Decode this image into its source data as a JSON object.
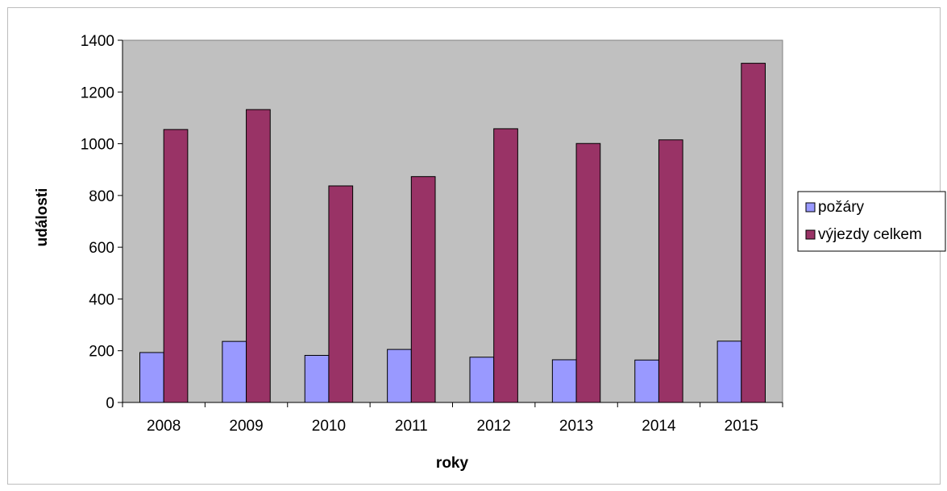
{
  "chart_data": {
    "type": "bar",
    "title": "",
    "xlabel": "roky",
    "ylabel": "události",
    "categories": [
      "2008",
      "2009",
      "2010",
      "2011",
      "2012",
      "2013",
      "2014",
      "2015"
    ],
    "series": [
      {
        "name": "požáry",
        "color": "#9999ff",
        "values": [
          193,
          236,
          182,
          205,
          175,
          165,
          164,
          237
        ]
      },
      {
        "name": "výjezdy celkem",
        "color": "#993366",
        "values": [
          1055,
          1132,
          837,
          873,
          1058,
          1001,
          1015,
          1311
        ]
      }
    ],
    "ylim": [
      0,
      1400
    ],
    "yticks": [
      0,
      200,
      400,
      600,
      800,
      1000,
      1200,
      1400
    ],
    "plot_background": "#c0c0c0",
    "grid": false,
    "legend_position": "right"
  }
}
